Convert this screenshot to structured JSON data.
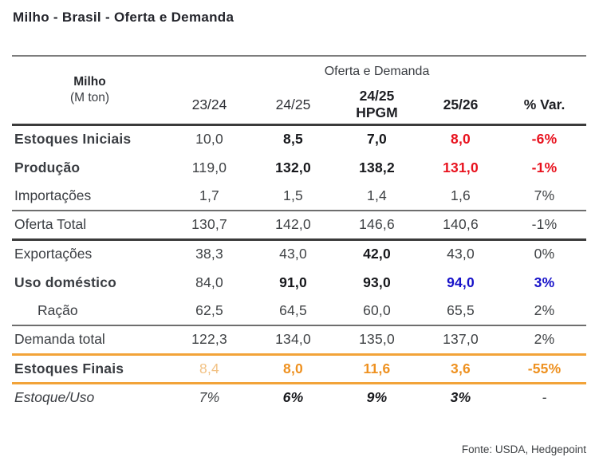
{
  "page_title": "Milho - Brasil - Oferta e Demanda",
  "footer": {
    "source": "Fonte: USDA, Hedgepoint"
  },
  "colors": {
    "red": "#E8111D",
    "blue": "#1712C9",
    "orange": "#EE9120",
    "orange_light": "#F2C183",
    "orange_line": "#F2A339",
    "dark_text": "#17181C",
    "regular_text": "#3F4245",
    "line_dark": "#3B3B3B",
    "line_gray": "#7D7D7D"
  },
  "table": {
    "corner": {
      "title": "Milho",
      "subtitle": "(M ton)"
    },
    "spanner": "Oferta e Demanda",
    "columns": [
      {
        "label": "23/24",
        "sub": "",
        "bold": false
      },
      {
        "label": "24/25",
        "sub": "",
        "bold": false
      },
      {
        "label": "24/25",
        "sub": "HPGM",
        "bold": true
      },
      {
        "label": "25/26",
        "sub": "",
        "bold": true
      },
      {
        "label": "% Var.",
        "sub": "",
        "bold": true
      }
    ],
    "rows": [
      {
        "label": "Estoques Iniciais",
        "label_style": "rb",
        "indent": false,
        "values": [
          "10,0",
          "8,5",
          "7,0",
          "8,0",
          "-6%"
        ],
        "styles": [
          "n",
          "b",
          "b",
          "rb",
          "rb"
        ],
        "sep": ""
      },
      {
        "label": "Produção",
        "label_style": "bb",
        "indent": false,
        "values": [
          "119,0",
          "132,0",
          "138,2",
          "131,0",
          "-1%"
        ],
        "styles": [
          "n",
          "b",
          "b",
          "rb",
          "rb"
        ],
        "sep": ""
      },
      {
        "label": "Importações",
        "label_style": "n",
        "indent": false,
        "values": [
          "1,7",
          "1,5",
          "1,4",
          "1,6",
          "7%"
        ],
        "styles": [
          "n",
          "n",
          "n",
          "n",
          "n"
        ],
        "sep": "thin"
      },
      {
        "label": "Oferta Total",
        "label_style": "n",
        "indent": false,
        "values": [
          "130,7",
          "142,0",
          "146,6",
          "140,6",
          "-1%"
        ],
        "styles": [
          "n",
          "n",
          "n",
          "n",
          "n"
        ],
        "sep": "dark"
      },
      {
        "label": "Exportações",
        "label_style": "n",
        "indent": false,
        "values": [
          "38,3",
          "43,0",
          "42,0",
          "43,0",
          "0%"
        ],
        "styles": [
          "n",
          "n",
          "b",
          "n",
          "n"
        ],
        "sep": ""
      },
      {
        "label": "Uso doméstico",
        "label_style": "bb",
        "indent": false,
        "values": [
          "84,0",
          "91,0",
          "93,0",
          "94,0",
          "3%"
        ],
        "styles": [
          "n",
          "b",
          "b",
          "bb",
          "bb"
        ],
        "sep": ""
      },
      {
        "label": "Ração",
        "label_style": "n",
        "indent": true,
        "values": [
          "62,5",
          "64,5",
          "60,0",
          "65,5",
          "2%"
        ],
        "styles": [
          "n",
          "n",
          "n",
          "n",
          "n"
        ],
        "sep": "thin"
      },
      {
        "label": "Demanda total",
        "label_style": "n",
        "indent": false,
        "values": [
          "122,3",
          "134,0",
          "135,0",
          "137,0",
          "2%"
        ],
        "styles": [
          "n",
          "n",
          "n",
          "n",
          "n"
        ],
        "sep": "orange"
      },
      {
        "label": "Estoques Finais",
        "label_style": "ob",
        "indent": false,
        "values": [
          "8,4",
          "8,0",
          "11,6",
          "3,6",
          "-55%"
        ],
        "styles": [
          "ol",
          "ob",
          "ob",
          "ob",
          "ob"
        ],
        "sep": "orange"
      },
      {
        "label": "Estoque/Uso",
        "label_style": "i",
        "indent": false,
        "values": [
          "7%",
          "6%",
          "9%",
          "3%",
          "-"
        ],
        "styles": [
          "i",
          "ib",
          "ib",
          "ib",
          "i"
        ],
        "sep": ""
      }
    ]
  },
  "chart_data": {
    "type": "table",
    "title": "Milho - Brasil - Oferta e Demanda",
    "unit": "M ton",
    "columns": [
      "23/24",
      "24/25",
      "24/25 HPGM",
      "25/26",
      "% Var."
    ],
    "rows": [
      {
        "label": "Estoques Iniciais",
        "values": [
          10.0,
          8.5,
          7.0,
          8.0
        ],
        "var": "-6%"
      },
      {
        "label": "Produção",
        "values": [
          119.0,
          132.0,
          138.2,
          131.0
        ],
        "var": "-1%"
      },
      {
        "label": "Importações",
        "values": [
          1.7,
          1.5,
          1.4,
          1.6
        ],
        "var": "7%"
      },
      {
        "label": "Oferta Total",
        "values": [
          130.7,
          142.0,
          146.6,
          140.6
        ],
        "var": "-1%"
      },
      {
        "label": "Exportações",
        "values": [
          38.3,
          43.0,
          42.0,
          43.0
        ],
        "var": "0%"
      },
      {
        "label": "Uso doméstico",
        "values": [
          84.0,
          91.0,
          93.0,
          94.0
        ],
        "var": "3%"
      },
      {
        "label": "Ração",
        "values": [
          62.5,
          64.5,
          60.0,
          65.5
        ],
        "var": "2%"
      },
      {
        "label": "Demanda total",
        "values": [
          122.3,
          134.0,
          135.0,
          137.0
        ],
        "var": "2%"
      },
      {
        "label": "Estoques Finais",
        "values": [
          8.4,
          8.0,
          11.6,
          3.6
        ],
        "var": "-55%"
      },
      {
        "label": "Estoque/Uso",
        "values": [
          "7%",
          "6%",
          "9%",
          "3%"
        ],
        "var": "-"
      }
    ],
    "source": "Fonte: USDA, Hedgepoint"
  }
}
